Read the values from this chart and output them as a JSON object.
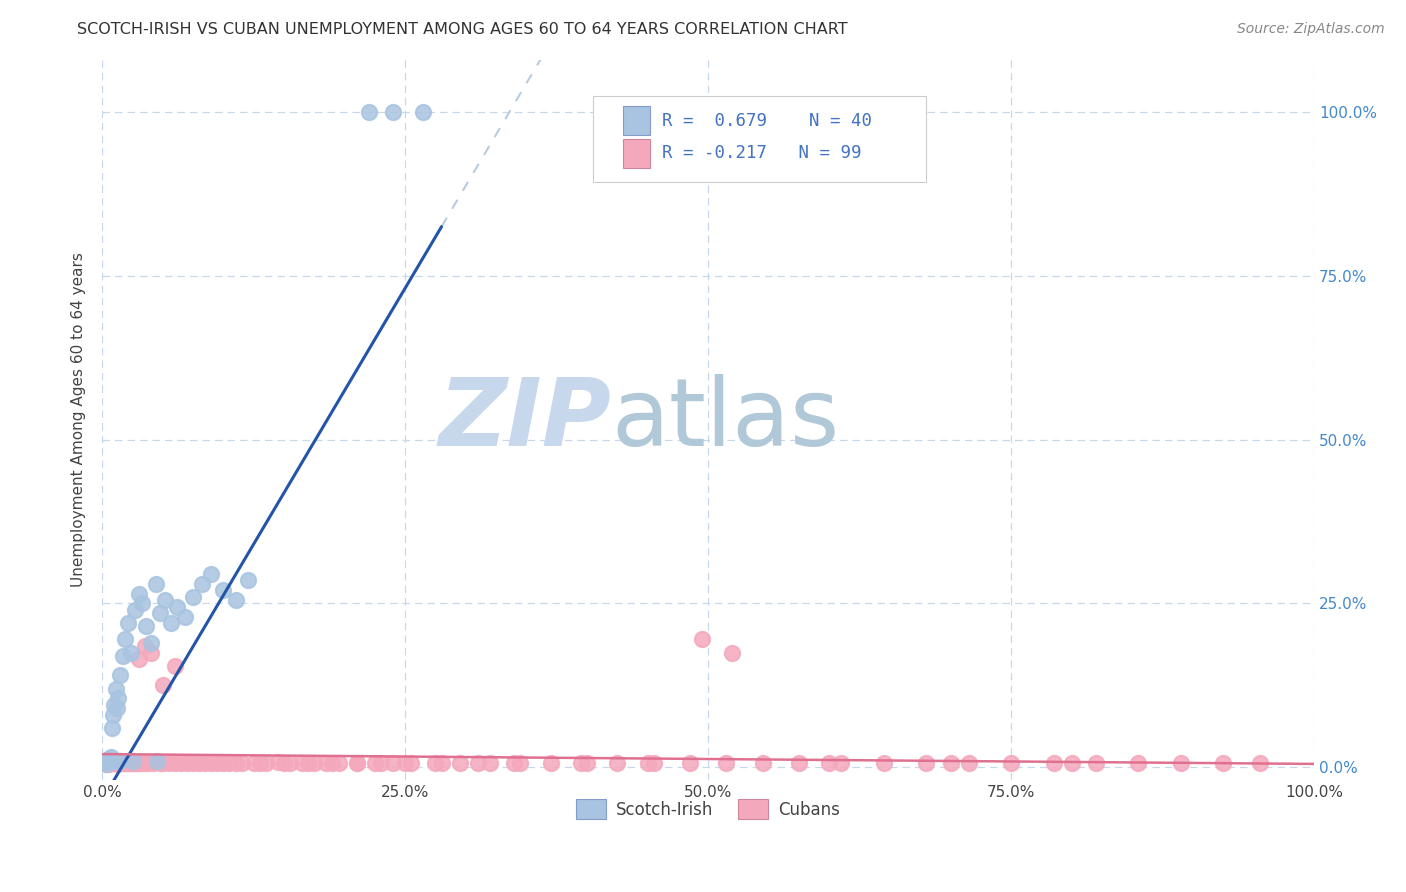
{
  "title": "SCOTCH-IRISH VS CUBAN UNEMPLOYMENT AMONG AGES 60 TO 64 YEARS CORRELATION CHART",
  "source": "Source: ZipAtlas.com",
  "ylabel": "Unemployment Among Ages 60 to 64 years",
  "xlim": [
    0,
    1.0
  ],
  "ylim": [
    -0.02,
    1.08
  ],
  "xtick_positions": [
    0,
    0.25,
    0.5,
    0.75,
    1.0
  ],
  "xtick_labels": [
    "0.0%",
    "25.0%",
    "50.0%",
    "75.0%",
    "100.0%"
  ],
  "ytick_positions": [
    0,
    0.25,
    0.5,
    0.75,
    1.0
  ],
  "ytick_labels_right": [
    "0.0%",
    "25.0%",
    "50.0%",
    "75.0%",
    "100.0%"
  ],
  "scotch_irish_R": 0.679,
  "scotch_irish_N": 40,
  "cuban_R": -0.217,
  "cuban_N": 99,
  "scotch_irish_color": "#a8c4e0",
  "cuban_color": "#f4a8bc",
  "scotch_irish_line_color": "#2255aa",
  "cuban_line_color": "#e07090",
  "dashed_line_color": "#b8cce0",
  "background_color": "#ffffff",
  "grid_color": "#c8d8ec",
  "watermark_zip_color": "#c8d8ec",
  "watermark_atlas_color": "#b0c8d8",
  "right_tick_color": "#4488cc",
  "title_color": "#333333",
  "source_color": "#888888",
  "legend_text_color": "#222222",
  "legend_R1_color": "#4472c4",
  "legend_R2_color": "#cc4488",
  "legend_N_color": "#4472c4"
}
